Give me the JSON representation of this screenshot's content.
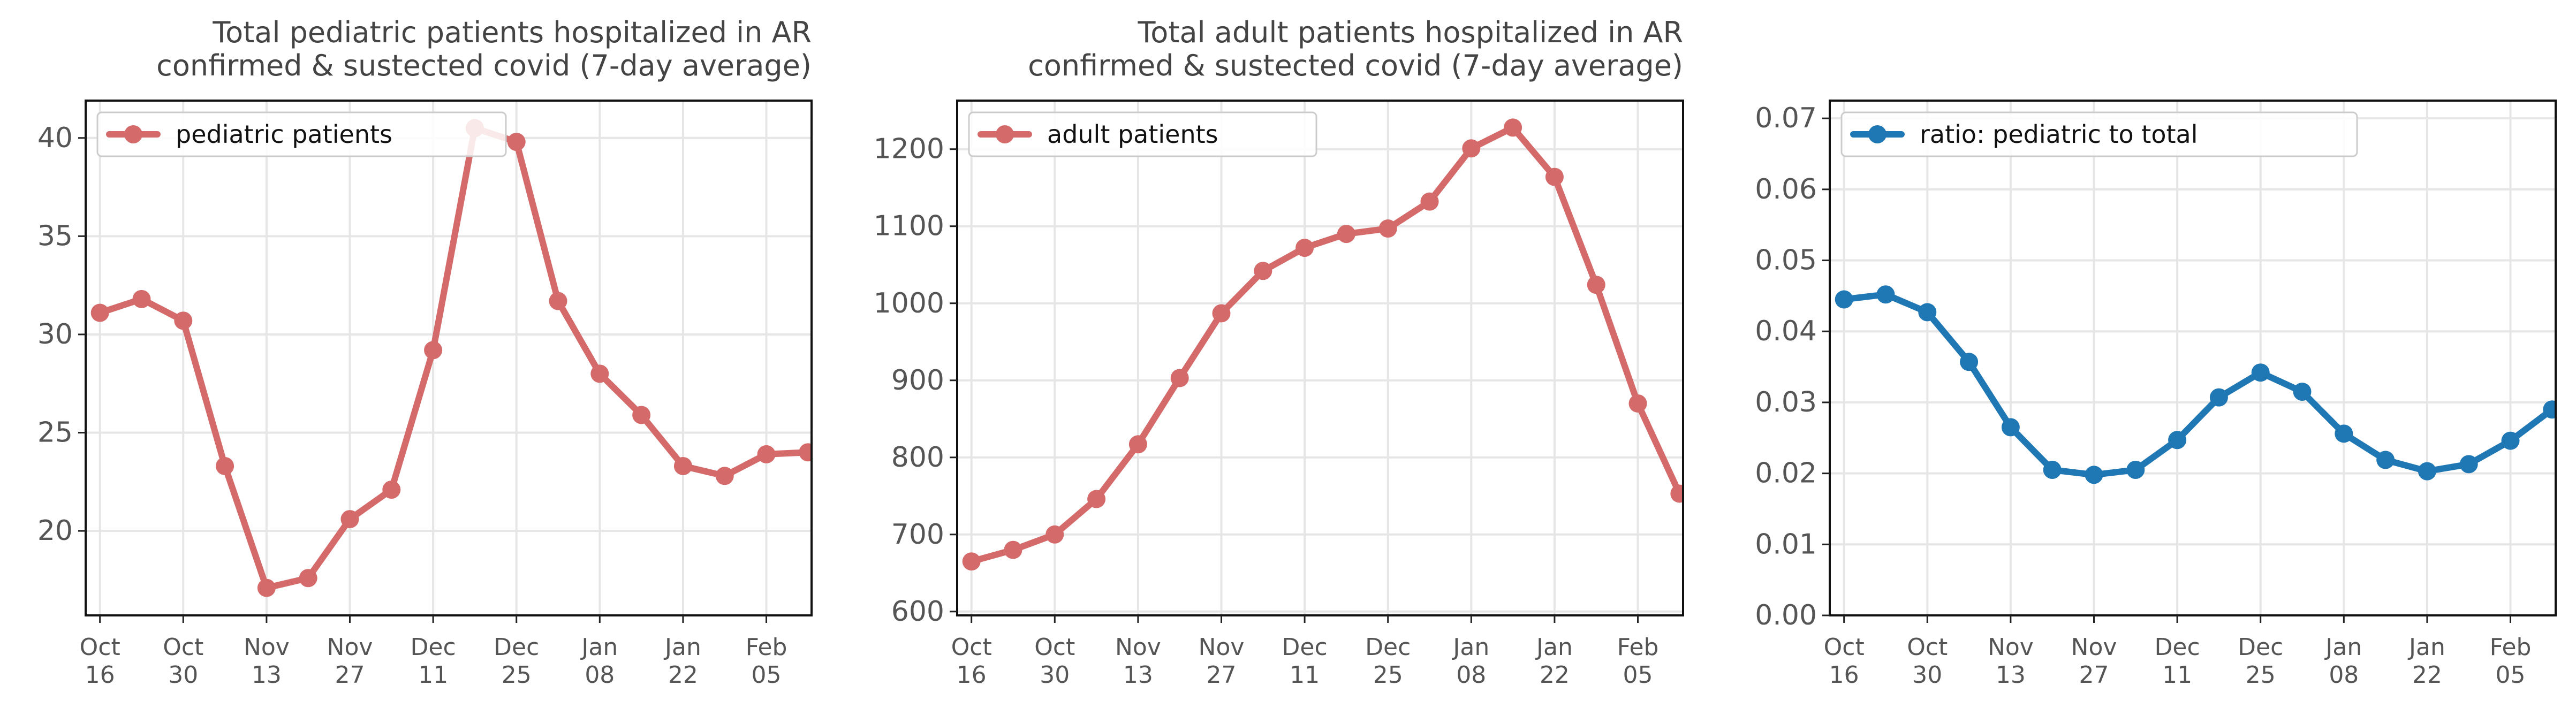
{
  "x_tick_labels": [
    [
      "Oct",
      "16"
    ],
    [
      "Oct",
      "30"
    ],
    [
      "Nov",
      "13"
    ],
    [
      "Nov",
      "27"
    ],
    [
      "Dec",
      "11"
    ],
    [
      "Dec",
      "25"
    ],
    [
      "Jan",
      "08"
    ],
    [
      "Jan",
      "22"
    ],
    [
      "Feb",
      "05"
    ]
  ],
  "chart_data": [
    {
      "type": "line",
      "title": [
        "Total pediatric patients hospitalized in AR",
        "confirmed & sustected covid (7-day average)"
      ],
      "x": [
        "2020-10-16",
        "2020-10-23",
        "2020-10-30",
        "2020-11-06",
        "2020-11-13",
        "2020-11-20",
        "2020-11-27",
        "2020-12-04",
        "2020-12-11",
        "2020-12-18",
        "2020-12-25",
        "2021-01-01",
        "2021-01-08",
        "2021-01-15",
        "2021-01-22",
        "2021-01-29",
        "2021-02-05",
        "2021-02-12"
      ],
      "series": [
        {
          "name": "pediatric patients",
          "color": "#d46a6a",
          "values": [
            31.1,
            31.8,
            30.7,
            23.3,
            17.1,
            17.6,
            20.6,
            22.1,
            29.2,
            40.5,
            39.8,
            31.7,
            28.0,
            25.9,
            23.3,
            22.8,
            23.9,
            24.0
          ]
        }
      ],
      "ylim": [
        15.7,
        41.9
      ],
      "yticks": [
        20,
        25,
        30,
        35,
        40
      ],
      "ytick_labels": [
        "20",
        "25",
        "30",
        "35",
        "40"
      ],
      "grid": true,
      "legend": "upper-left"
    },
    {
      "type": "line",
      "title": [
        "Total adult patients hospitalized in AR",
        "confirmed & sustected covid (7-day average)"
      ],
      "x": [
        "2020-10-16",
        "2020-10-23",
        "2020-10-30",
        "2020-11-06",
        "2020-11-13",
        "2020-11-20",
        "2020-11-27",
        "2020-12-04",
        "2020-12-11",
        "2020-12-18",
        "2020-12-25",
        "2021-01-01",
        "2021-01-08",
        "2021-01-15",
        "2021-01-22",
        "2021-01-29",
        "2021-02-05",
        "2021-02-12"
      ],
      "series": [
        {
          "name": "adult patients",
          "color": "#d46a6a",
          "values": [
            665,
            680,
            700,
            746,
            817,
            903,
            987,
            1042,
            1072,
            1090,
            1097,
            1132,
            1201,
            1228,
            1164,
            1024,
            870,
            753
          ]
        }
      ],
      "ylim": [
        595,
        1263
      ],
      "yticks": [
        600,
        700,
        800,
        900,
        1000,
        1100,
        1200
      ],
      "ytick_labels": [
        "600",
        "700",
        "800",
        "900",
        "1000",
        "1100",
        "1200"
      ],
      "grid": true,
      "legend": "upper-left"
    },
    {
      "type": "line",
      "title": [],
      "x": [
        "2020-10-16",
        "2020-10-23",
        "2020-10-30",
        "2020-11-06",
        "2020-11-13",
        "2020-11-20",
        "2020-11-27",
        "2020-12-04",
        "2020-12-11",
        "2020-12-18",
        "2020-12-25",
        "2021-01-01",
        "2021-01-08",
        "2021-01-15",
        "2021-01-22",
        "2021-01-29",
        "2021-02-05",
        "2021-02-12"
      ],
      "series": [
        {
          "name": "ratio: pediatric to total",
          "color": "#1f77b4",
          "values": [
            0.0445,
            0.0452,
            0.0427,
            0.0357,
            0.0265,
            0.0205,
            0.0198,
            0.0205,
            0.0247,
            0.0307,
            0.0342,
            0.0315,
            0.0256,
            0.0219,
            0.0203,
            0.0213,
            0.0246,
            0.029
          ]
        }
      ],
      "ylim": [
        0,
        0.0725
      ],
      "yticks": [
        0,
        0.01,
        0.02,
        0.03,
        0.04,
        0.05,
        0.06,
        0.07
      ],
      "ytick_labels": [
        "0.00",
        "0.01",
        "0.02",
        "0.03",
        "0.04",
        "0.05",
        "0.06",
        "0.07"
      ],
      "grid": true,
      "legend": "upper-left"
    }
  ]
}
